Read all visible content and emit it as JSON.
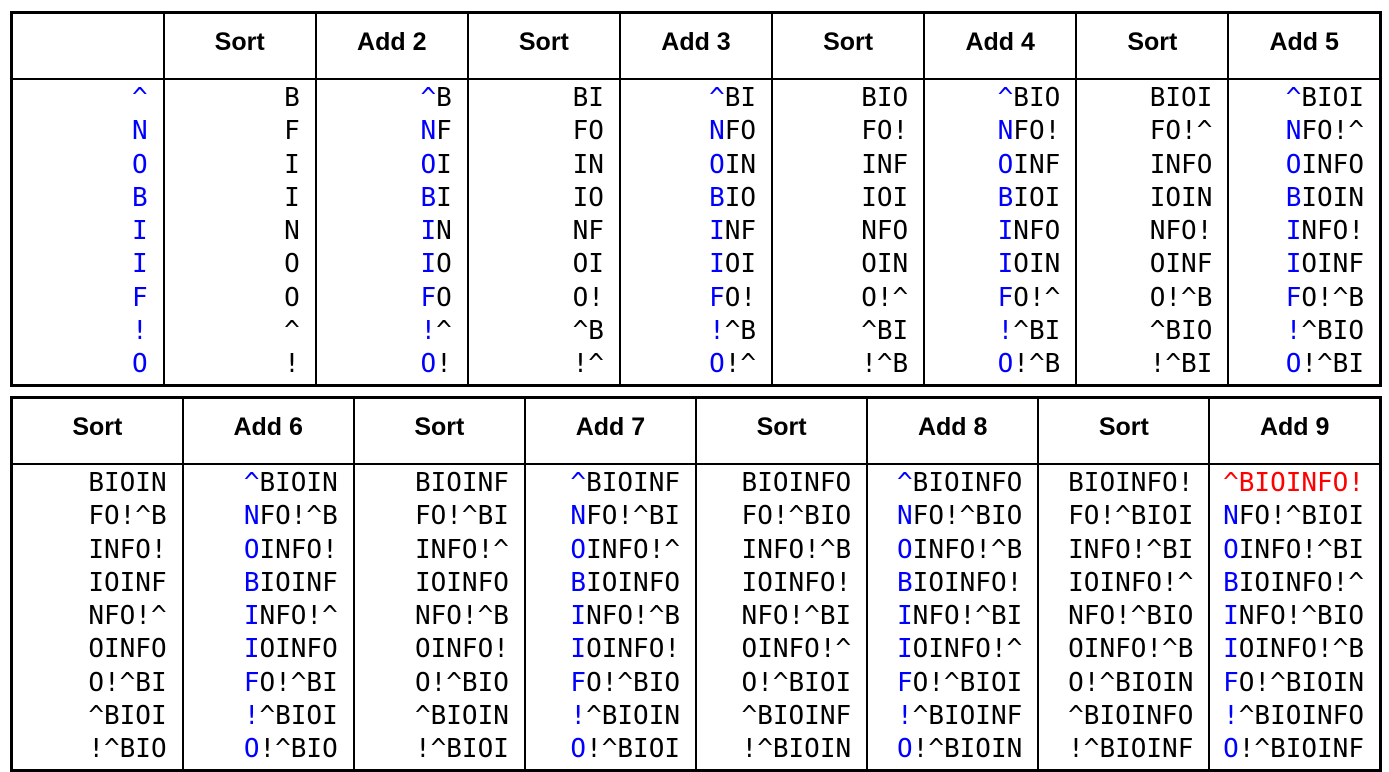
{
  "colors": {
    "base_text": "#000000",
    "added_char": "#0000ff",
    "final_string": "#ff0000",
    "border": "#000000",
    "background": "#ffffff"
  },
  "tables": [
    {
      "name": "top",
      "columns": [
        {
          "header": "",
          "type": "seed",
          "cells": [
            "^",
            "N",
            "O",
            "B",
            "I",
            "I",
            "F",
            "!",
            "O"
          ]
        },
        {
          "header": "Sort",
          "type": "sort",
          "cells": [
            "B",
            "F",
            "I",
            "I",
            "N",
            "O",
            "O",
            "^",
            "!"
          ]
        },
        {
          "header": "Add 2",
          "type": "add",
          "cells": [
            "^B",
            "NF",
            "OI",
            "BI",
            "IN",
            "IO",
            "FO",
            "!^",
            "O!"
          ]
        },
        {
          "header": "Sort",
          "type": "sort",
          "cells": [
            "BI",
            "FO",
            "IN",
            "IO",
            "NF",
            "OI",
            "O!",
            "^B",
            "!^"
          ]
        },
        {
          "header": "Add 3",
          "type": "add",
          "cells": [
            "^BI",
            "NFO",
            "OIN",
            "BIO",
            "INF",
            "IOI",
            "FO!",
            "!^B",
            "O!^"
          ]
        },
        {
          "header": "Sort",
          "type": "sort",
          "cells": [
            "BIO",
            "FO!",
            "INF",
            "IOI",
            "NFO",
            "OIN",
            "O!^",
            "^BI",
            "!^B"
          ]
        },
        {
          "header": "Add 4",
          "type": "add",
          "cells": [
            "^BIO",
            "NFO!",
            "OINF",
            "BIOI",
            "INFO",
            "IOIN",
            "FO!^",
            "!^BI",
            "O!^B"
          ]
        },
        {
          "header": "Sort",
          "type": "sort",
          "cells": [
            "BIOI",
            "FO!^",
            "INFO",
            "IOIN",
            "NFO!",
            "OINF",
            "O!^B",
            "^BIO",
            "!^BI"
          ]
        },
        {
          "header": "Add 5",
          "type": "add",
          "cells": [
            "^BIOI",
            "NFO!^",
            "OINFO",
            "BIOIN",
            "INFO!",
            "IOINF",
            "FO!^B",
            "!^BIO",
            "O!^BI"
          ]
        }
      ]
    },
    {
      "name": "bottom",
      "columns": [
        {
          "header": "Sort",
          "type": "sort",
          "cells": [
            "BIOIN",
            "FO!^B",
            "INFO!",
            "IOINF",
            "NFO!^",
            "OINFO",
            "O!^BI",
            "^BIOI",
            "!^BIO"
          ]
        },
        {
          "header": "Add 6",
          "type": "add",
          "cells": [
            "^BIOIN",
            "NFO!^B",
            "OINFO!",
            "BIOINF",
            "INFO!^",
            "IOINFO",
            "FO!^BI",
            "!^BIOI",
            "O!^BIO"
          ]
        },
        {
          "header": "Sort",
          "type": "sort",
          "cells": [
            "BIOINF",
            "FO!^BI",
            "INFO!^",
            "IOINFO",
            "NFO!^B",
            "OINFO!",
            "O!^BIO",
            "^BIOIN",
            "!^BIOI"
          ]
        },
        {
          "header": "Add 7",
          "type": "add",
          "cells": [
            "^BIOINF",
            "NFO!^BI",
            "OINFO!^",
            "BIOINFO",
            "INFO!^B",
            "IOINFO!",
            "FO!^BIO",
            "!^BIOIN",
            "O!^BIOI"
          ]
        },
        {
          "header": "Sort",
          "type": "sort",
          "cells": [
            "BIOINFO",
            "FO!^BIO",
            "INFO!^B",
            "IOINFO!",
            "NFO!^BI",
            "OINFO!^",
            "O!^BIOI",
            "^BIOINF",
            "!^BIOIN"
          ]
        },
        {
          "header": "Add 8",
          "type": "add",
          "cells": [
            "^BIOINFO",
            "NFO!^BIO",
            "OINFO!^B",
            "BIOINFO!",
            "INFO!^BI",
            "IOINFO!^",
            "FO!^BIOI",
            "!^BIOINF",
            "O!^BIOIN"
          ]
        },
        {
          "header": "Sort",
          "type": "sort",
          "cells": [
            "BIOINFO!",
            "FO!^BIOI",
            "INFO!^BI",
            "IOINFO!^",
            "NFO!^BIO",
            "OINFO!^B",
            "O!^BIOIN",
            "^BIOINFO",
            "!^BIOINF"
          ]
        },
        {
          "header": "Add 9",
          "type": "add",
          "highlight_row": 0,
          "cells": [
            "^BIOINFO!",
            "NFO!^BIOI",
            "OINFO!^BI",
            "BIOINFO!^",
            "INFO!^BIO",
            "IOINFO!^B",
            "FO!^BIOIN",
            "!^BIOINFO",
            "O!^BIOINF"
          ]
        }
      ]
    }
  ]
}
